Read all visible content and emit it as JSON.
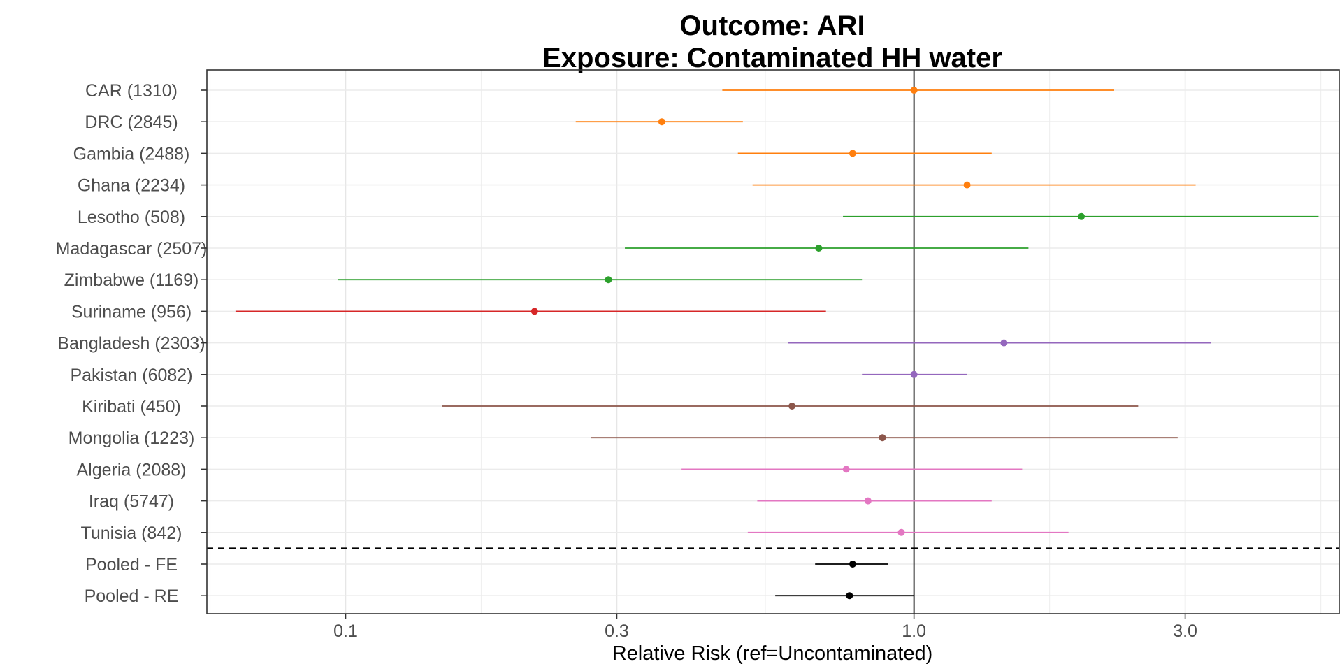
{
  "chart_data": {
    "type": "forest",
    "title": "Outcome: ARI",
    "subtitle": "Exposure: Contaminated HH water",
    "xlabel": "Relative Risk (ref=Uncontaminated)",
    "x_scale": "log",
    "xlim": [
      0.057,
      5.6
    ],
    "x_ticks": [
      0.1,
      0.3,
      1.0,
      3.0
    ],
    "x_tick_labels": [
      "0.1",
      "0.3",
      "1.0",
      "3.0"
    ],
    "reference_line": 1.0,
    "separator": "dashed line between individual studies and pooled estimates",
    "grid": true,
    "rows": [
      {
        "label": "CAR (1310)",
        "estimate": 1.0,
        "lower": 0.46,
        "upper": 2.25,
        "color": "#ff7f0e"
      },
      {
        "label": "DRC (2845)",
        "estimate": 0.36,
        "lower": 0.254,
        "upper": 0.5,
        "color": "#ff7f0e"
      },
      {
        "label": "Gambia (2488)",
        "estimate": 0.78,
        "lower": 0.49,
        "upper": 1.37,
        "color": "#ff7f0e"
      },
      {
        "label": "Ghana (2234)",
        "estimate": 1.24,
        "lower": 0.52,
        "upper": 3.13,
        "color": "#ff7f0e"
      },
      {
        "label": "Lesotho (508)",
        "estimate": 1.97,
        "lower": 0.75,
        "upper": 5.15,
        "color": "#2ca02c"
      },
      {
        "label": "Madagascar (2507)",
        "estimate": 0.68,
        "lower": 0.31,
        "upper": 1.59,
        "color": "#2ca02c"
      },
      {
        "label": "Zimbabwe (1169)",
        "estimate": 0.29,
        "lower": 0.097,
        "upper": 0.81,
        "color": "#2ca02c"
      },
      {
        "label": "Suriname (956)",
        "estimate": 0.215,
        "lower": 0.064,
        "upper": 0.7,
        "color": "#d62728"
      },
      {
        "label": "Bangladesh (2303)",
        "estimate": 1.44,
        "lower": 0.6,
        "upper": 3.33,
        "color": "#9467bd"
      },
      {
        "label": "Pakistan (6082)",
        "estimate": 1.0,
        "lower": 0.81,
        "upper": 1.24,
        "color": "#9467bd"
      },
      {
        "label": "Kiribati (450)",
        "estimate": 0.61,
        "lower": 0.148,
        "upper": 2.48,
        "color": "#8c564b"
      },
      {
        "label": "Mongolia (1223)",
        "estimate": 0.88,
        "lower": 0.27,
        "upper": 2.91,
        "color": "#8c564b"
      },
      {
        "label": "Algeria (2088)",
        "estimate": 0.76,
        "lower": 0.39,
        "upper": 1.55,
        "color": "#e377c2"
      },
      {
        "label": "Iraq (5747)",
        "estimate": 0.83,
        "lower": 0.53,
        "upper": 1.37,
        "color": "#e377c2"
      },
      {
        "label": "Tunisia (842)",
        "estimate": 0.95,
        "lower": 0.51,
        "upper": 1.87,
        "color": "#e377c2"
      },
      {
        "label": "Pooled - FE",
        "estimate": 0.78,
        "lower": 0.67,
        "upper": 0.9,
        "color": "#000000"
      },
      {
        "label": "Pooled - RE",
        "estimate": 0.77,
        "lower": 0.57,
        "upper": 1.0,
        "color": "#000000"
      }
    ]
  }
}
